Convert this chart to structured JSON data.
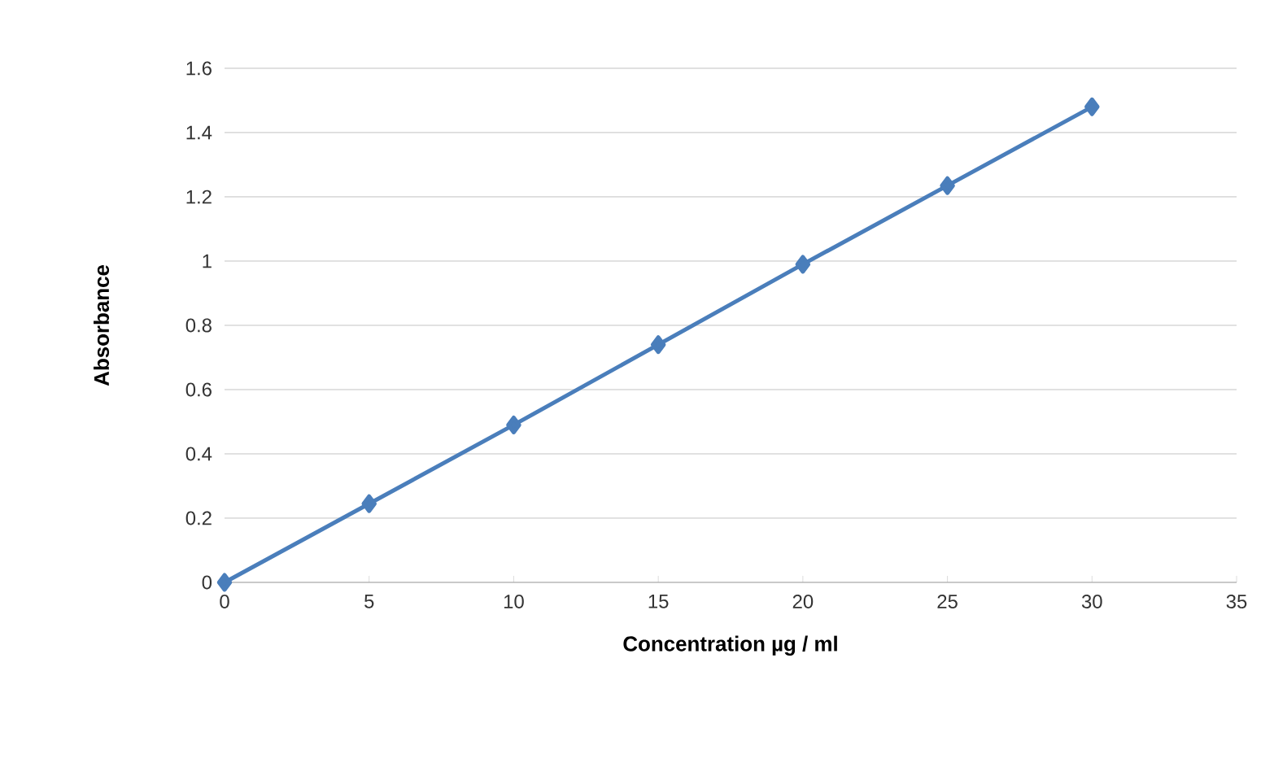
{
  "chart_data": {
    "type": "line",
    "xlabel": "Concentration µg / ml",
    "ylabel": "Absorbance",
    "x": [
      0,
      5,
      10,
      15,
      20,
      25,
      30
    ],
    "series": [
      {
        "color": "#4a7ebb",
        "values": [
          0,
          0.245,
          0.49,
          0.74,
          0.99,
          1.235,
          1.48
        ]
      }
    ],
    "xlim": [
      0,
      35
    ],
    "xticks": [
      0,
      5,
      10,
      15,
      20,
      25,
      30,
      35
    ],
    "ylim": [
      0,
      1.6
    ],
    "yticks": [
      0,
      {
        "value": 0.2,
        "label": "0.2"
      },
      {
        "value": 0.4,
        "label": "0.4"
      },
      {
        "value": 0.6,
        "label": "0.6"
      },
      {
        "value": 0.8,
        "label": "0.8"
      },
      1,
      {
        "value": 1.2,
        "label": "1.2"
      },
      {
        "value": 1.4,
        "label": "1.4"
      },
      {
        "value": 1.6,
        "label": "1.6"
      }
    ],
    "grid": "y",
    "marker": "diamond",
    "line_style": "solid"
  }
}
